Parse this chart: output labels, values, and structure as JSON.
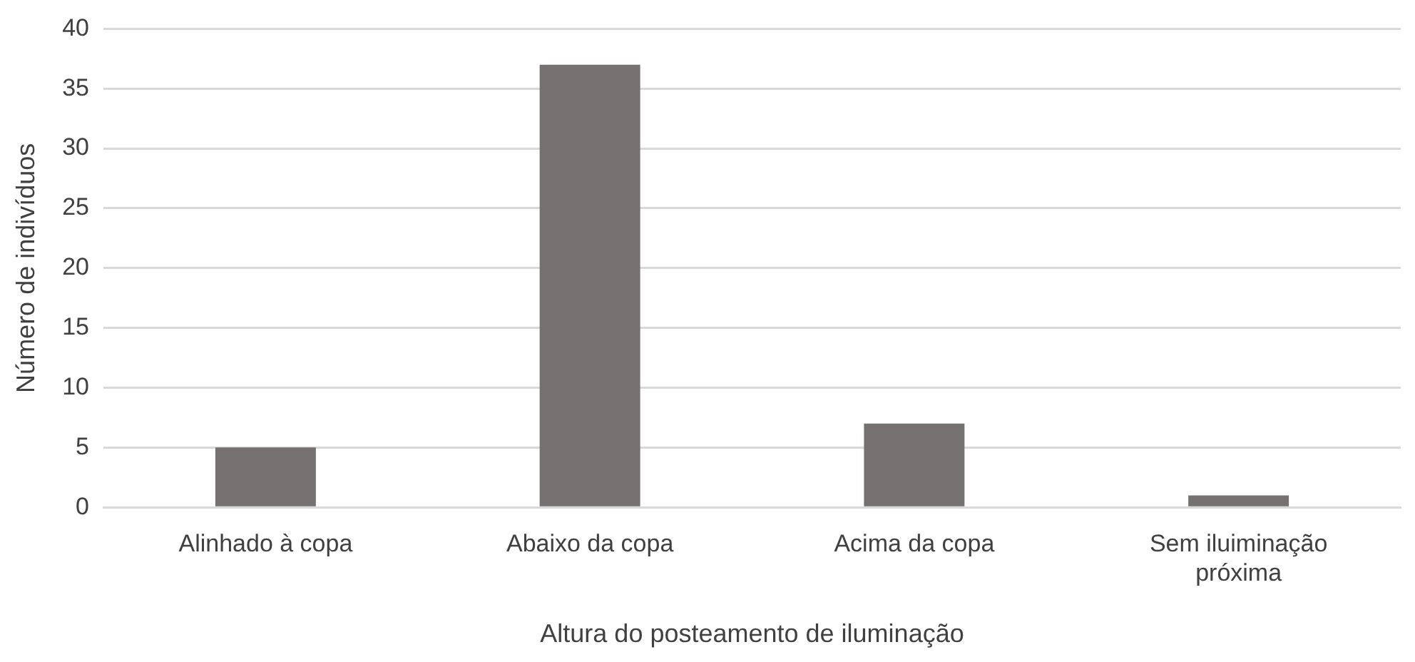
{
  "chart_data": {
    "type": "bar",
    "xlabel": "Altura do posteamento de iluminação",
    "ylabel": "Número de indivíduos",
    "categories": [
      "Alinhado à copa",
      "Abaixo da copa",
      "Acima da copa",
      "Sem iluiminação próxima"
    ],
    "values": [
      5,
      37,
      7,
      1
    ],
    "color": "#767171",
    "ylim": [
      0,
      40
    ],
    "yticks": [
      0,
      5,
      10,
      15,
      20,
      25,
      30,
      35,
      40
    ],
    "grid": "y"
  }
}
